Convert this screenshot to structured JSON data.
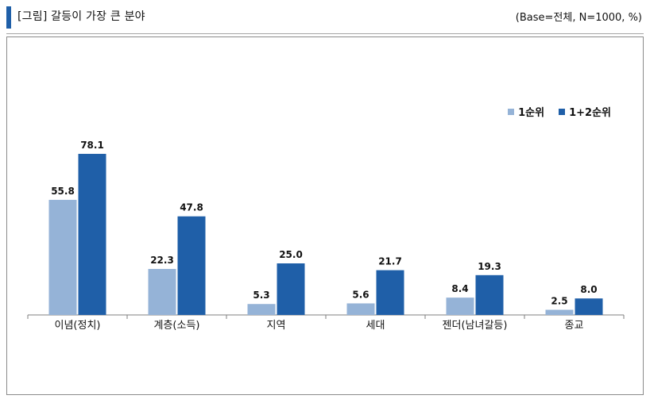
{
  "header": {
    "title": "[그림] 갈등이 가장 큰 분야",
    "base_note": "(Base=전체, N=1000, %)"
  },
  "colors": {
    "accent": "#1f5fa8",
    "series1": "#95b3d7",
    "series2": "#1f5fa8"
  },
  "chart_data": {
    "type": "bar",
    "categories": [
      "이념(정치)",
      "계층(소득)",
      "지역",
      "세대",
      "젠더(남녀갈등)",
      "종교"
    ],
    "series": [
      {
        "name": "1순위",
        "values": [
          55.8,
          22.3,
          5.3,
          5.6,
          8.4,
          2.5
        ]
      },
      {
        "name": "1+2순위",
        "values": [
          78.1,
          47.8,
          25.0,
          21.7,
          19.3,
          8.0
        ]
      }
    ],
    "title": "",
    "xlabel": "",
    "ylabel": "",
    "ylim": [
      0,
      100
    ],
    "grid": false,
    "legend_position": "top-right"
  }
}
